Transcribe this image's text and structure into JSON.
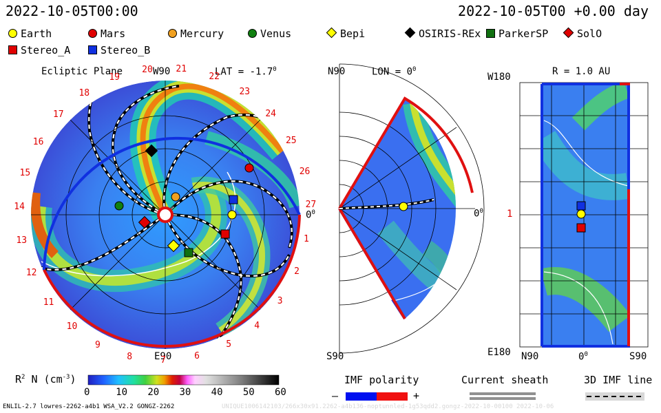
{
  "header": {
    "datetime_left": "2022-10-05T00:00",
    "datetime_right": "2022-10-05T00 +0.00 day"
  },
  "legend": [
    {
      "label": "Earth",
      "shape": "circle",
      "color": "#ffff00"
    },
    {
      "label": "Mars",
      "shape": "circle",
      "color": "#e00000"
    },
    {
      "label": "Mercury",
      "shape": "circle",
      "color": "#f0a020"
    },
    {
      "label": "Venus",
      "shape": "circle",
      "color": "#108010"
    },
    {
      "label": "Bepi",
      "shape": "diamond",
      "color": "#ffff00"
    },
    {
      "label": "OSIRIS-REx",
      "shape": "diamond",
      "color": "#000000"
    },
    {
      "label": "ParkerSP",
      "shape": "square",
      "color": "#107010"
    },
    {
      "label": "SolO",
      "shape": "diamond",
      "color": "#e00000"
    },
    {
      "label": "Stereo_A",
      "shape": "square",
      "color": "#e00000"
    },
    {
      "label": "Stereo_B",
      "shape": "square",
      "color": "#1030e0"
    }
  ],
  "panel_ecliptic": {
    "title": "Ecliptic Plane",
    "lat": "LAT = -1.7",
    "lat_sup": "0",
    "top": "W90",
    "bottom": "E90",
    "right": "0",
    "right_sup": "0",
    "ticks": [
      "20",
      "21",
      "22",
      "23",
      "24",
      "25",
      "26",
      "27",
      "1",
      "2",
      "3",
      "4",
      "5",
      "6",
      "7",
      "8",
      "9",
      "10",
      "11",
      "12",
      "13",
      "14",
      "15",
      "16",
      "17",
      "18",
      "19"
    ]
  },
  "panel_meridional": {
    "title": "LON = 0",
    "title_sup": "0",
    "top": "N90",
    "bottom": "S90",
    "right": "0",
    "right_sup": "0"
  },
  "panel_radial": {
    "title": "R = 1.0 AU",
    "top_left": "W180",
    "bottom_left": "E180",
    "mid_left": "1",
    "x_left": "N90",
    "x_mid": "0",
    "x_mid_sup": "0",
    "x_right": "S90"
  },
  "colorbar": {
    "label": "R",
    "label_sup": "2",
    "label_rest": " N (cm",
    "label_sup2": "-3",
    "label_end": ")",
    "ticks": [
      "0",
      "10",
      "20",
      "30",
      "40",
      "50",
      "60"
    ]
  },
  "imf_polarity": {
    "title": "IMF polarity",
    "minus": "–",
    "plus": "+"
  },
  "current_sheath": {
    "title": "Current sheath"
  },
  "imf_line": {
    "title": "3D IMF line"
  },
  "footer": {
    "left": "ENLIL-2.7 lowres-2262-a4b1 WSA_V2.2 GONGZ-2262",
    "right": "UNIQUE1006142103/266x30x91.2262-a4b136-noptunnled-1g53qdd2.gongz-2022-10-00100   2022-10-06"
  }
}
